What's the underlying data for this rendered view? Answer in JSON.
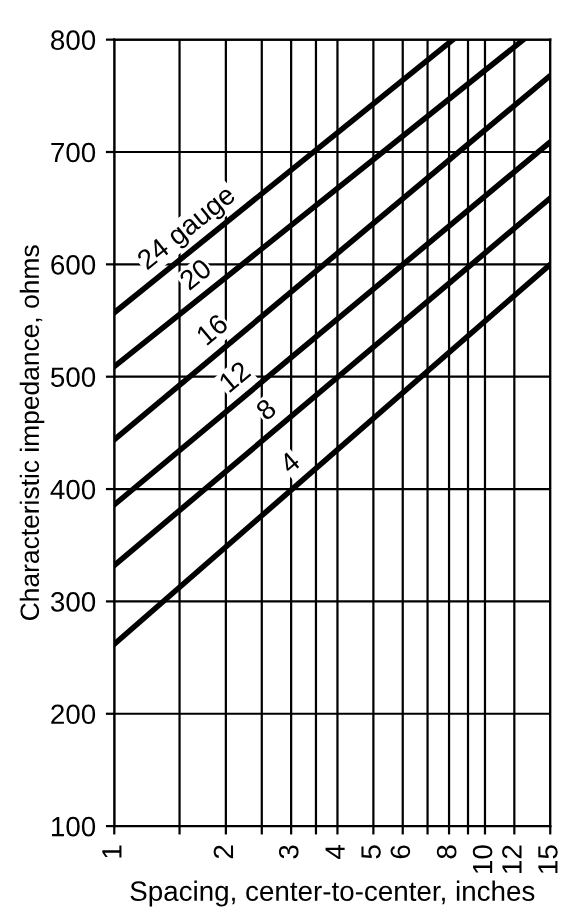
{
  "chart_data": {
    "type": "line",
    "xlabel": "Spacing, center-to-center, inches",
    "ylabel": "Characteristic impedance, ohms",
    "log": "x",
    "grid": true,
    "marker": "none",
    "line_style": "solid",
    "xlim": [
      1,
      15
    ],
    "ylim": [
      100,
      800
    ],
    "xticks": [
      1,
      {
        "value": 1.5,
        "label": null
      },
      2,
      {
        "value": 2.5,
        "label": null
      },
      3,
      {
        "value": 3.5,
        "label": null
      },
      4,
      5,
      6,
      {
        "value": 7,
        "label": null
      },
      8,
      {
        "value": 9,
        "label": null
      },
      10,
      12,
      15
    ],
    "yticks": [
      100,
      200,
      300,
      400,
      500,
      600,
      700,
      800
    ],
    "series": [
      {
        "color": "#000000",
        "x": [
          1,
          8.2
        ],
        "values": [
          557,
          800
        ]
      },
      {
        "color": "#000000",
        "x": [
          1,
          12.7
        ],
        "values": [
          509,
          800
        ]
      },
      {
        "color": "#000000",
        "x": [
          1,
          15
        ],
        "values": [
          444,
          768
        ]
      },
      {
        "color": "#000000",
        "x": [
          1,
          15
        ],
        "values": [
          386,
          709
        ]
      },
      {
        "color": "#000000",
        "x": [
          1,
          15
        ],
        "values": [
          332,
          659
        ]
      },
      {
        "color": "#000000",
        "x": [
          1,
          15
        ],
        "values": [
          262,
          600
        ]
      }
    ],
    "annotations": [
      {
        "text": "24 gauge",
        "x": 1.7,
        "y": 618
      },
      {
        "text": "20",
        "x": 1.8,
        "y": 576
      },
      {
        "text": "16",
        "x": 2.0,
        "y": 527
      },
      {
        "text": "12",
        "x": 2.3,
        "y": 485
      },
      {
        "text": "8",
        "x": 2.8,
        "y": 456
      },
      {
        "text": "4",
        "x": 3.25,
        "y": 409
      }
    ]
  }
}
